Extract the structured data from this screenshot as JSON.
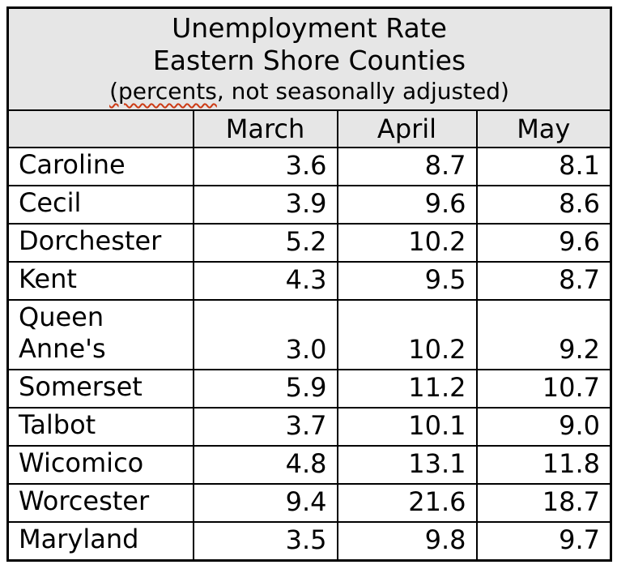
{
  "chart_data": {
    "type": "table",
    "title": "Unemployment Rate",
    "subtitle": "Eastern Shore Counties",
    "note": "(percents, not seasonally adjusted)",
    "note_underlined_part": "(percents",
    "note_rest_part": ", not seasonally adjusted)",
    "columns": [
      "March",
      "April",
      "May"
    ],
    "rows": [
      {
        "label": "Caroline",
        "values": [
          "3.6",
          "8.7",
          "8.1"
        ]
      },
      {
        "label": "Cecil",
        "values": [
          "3.9",
          "9.6",
          "8.6"
        ]
      },
      {
        "label": "Dorchester",
        "values": [
          "5.2",
          "10.2",
          "9.6"
        ]
      },
      {
        "label": "Kent",
        "values": [
          "4.3",
          "9.5",
          "8.7"
        ]
      },
      {
        "label": "Queen Anne's",
        "values": [
          "3.0",
          "10.2",
          "9.2"
        ]
      },
      {
        "label": "Somerset",
        "values": [
          "5.9",
          "11.2",
          "10.7"
        ]
      },
      {
        "label": "Talbot",
        "values": [
          "3.7",
          "10.1",
          "9.0"
        ]
      },
      {
        "label": "Wicomico",
        "values": [
          "4.8",
          "13.1",
          "11.8"
        ]
      },
      {
        "label": "Worcester",
        "values": [
          "9.4",
          "21.6",
          "18.7"
        ]
      },
      {
        "label": "Maryland",
        "values": [
          "3.5",
          "9.8",
          "9.7"
        ]
      }
    ],
    "layout": {
      "legend": "none",
      "grid": "all-cell-borders",
      "value_alignment": "right",
      "header_alignment": "center"
    },
    "colors": {
      "header_bg": "#e6e6e6",
      "body_bg": "#ffffff",
      "border": "#000000",
      "text": "#000000",
      "spellcheck_squiggle": "#cc3a14"
    }
  }
}
